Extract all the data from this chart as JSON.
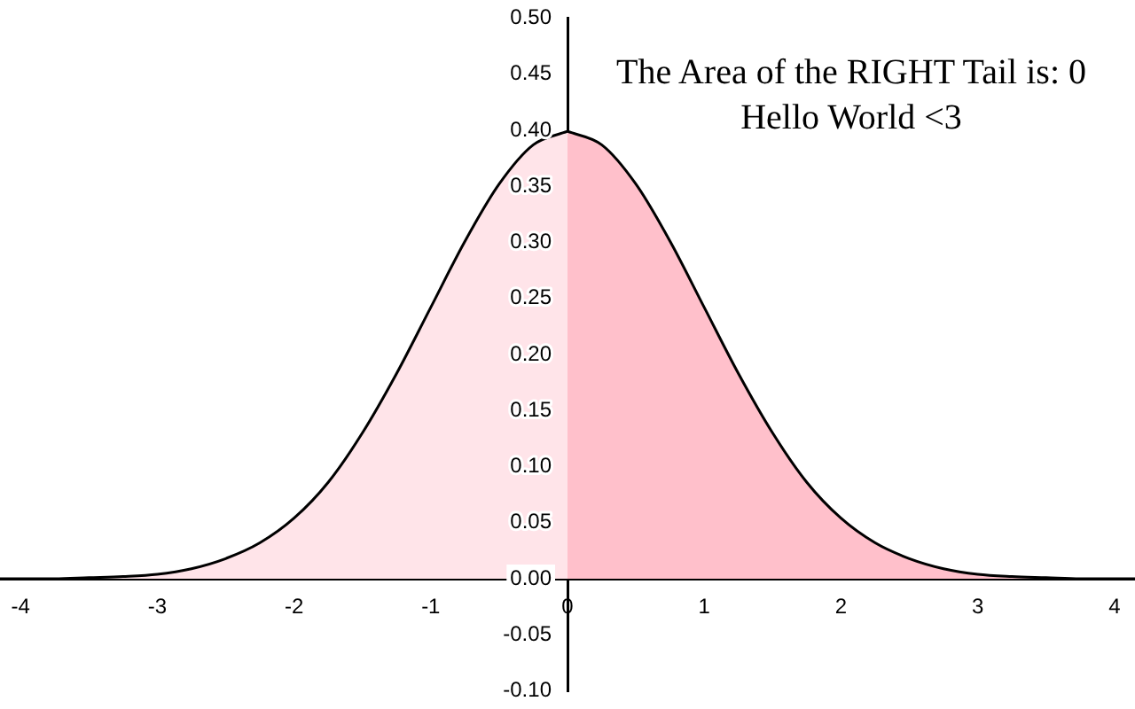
{
  "chart_data": {
    "type": "area",
    "title": "The Area of the RIGHT Tail is: 0",
    "subtitle": "Hello World <3",
    "xlim": [
      -4.15,
      4.15
    ],
    "xticks": [
      -4,
      -3,
      -2,
      -1,
      0,
      1,
      2,
      3,
      4
    ],
    "ylim": [
      -0.1,
      0.5
    ],
    "yticks": [
      {
        "value": -0.1,
        "label": "-0.10"
      },
      {
        "value": -0.05,
        "label": "-0.05"
      },
      {
        "value": 0,
        "label": "0.00"
      },
      {
        "value": 0.05,
        "label": "0.05"
      },
      {
        "value": 0.1,
        "label": "0.10"
      },
      {
        "value": 0.15,
        "label": "0.15"
      },
      {
        "value": 0.2,
        "label": "0.20"
      },
      {
        "value": 0.25,
        "label": "0.25"
      },
      {
        "value": 0.3,
        "label": "0.30"
      },
      {
        "value": 0.35,
        "label": "0.35"
      },
      {
        "value": 0.4,
        "label": "0.40"
      },
      {
        "value": 0.45,
        "label": "0.45"
      },
      {
        "value": 0.5,
        "label": "0.50"
      }
    ],
    "grid": false,
    "legend": false,
    "marker": "none",
    "series": [
      {
        "color": "#ffe4e9",
        "x": [
          -4.15,
          -4,
          -3.75,
          -3.5,
          -3.25,
          -3,
          -2.75,
          -2.5,
          -2.25,
          -2,
          -1.75,
          -1.5,
          -1.25,
          -1,
          -0.75,
          -0.5,
          -0.25,
          0
        ],
        "values": [
          0,
          0,
          0,
          0.001,
          0.002,
          0.004,
          0.009,
          0.018,
          0.032,
          0.054,
          0.086,
          0.13,
          0.183,
          0.242,
          0.301,
          0.352,
          0.387,
          0.399
        ]
      },
      {
        "color": "#ffc0cb",
        "x": [
          0,
          0.25,
          0.5,
          0.75,
          1,
          1.25,
          1.5,
          1.75,
          2,
          2.25,
          2.5,
          2.75,
          3,
          3.25,
          3.5,
          3.75,
          4,
          4.15
        ],
        "values": [
          0.399,
          0.387,
          0.352,
          0.301,
          0.242,
          0.183,
          0.13,
          0.086,
          0.054,
          0.032,
          0.018,
          0.009,
          0.004,
          0.002,
          0.001,
          0,
          0,
          0
        ]
      }
    ]
  }
}
